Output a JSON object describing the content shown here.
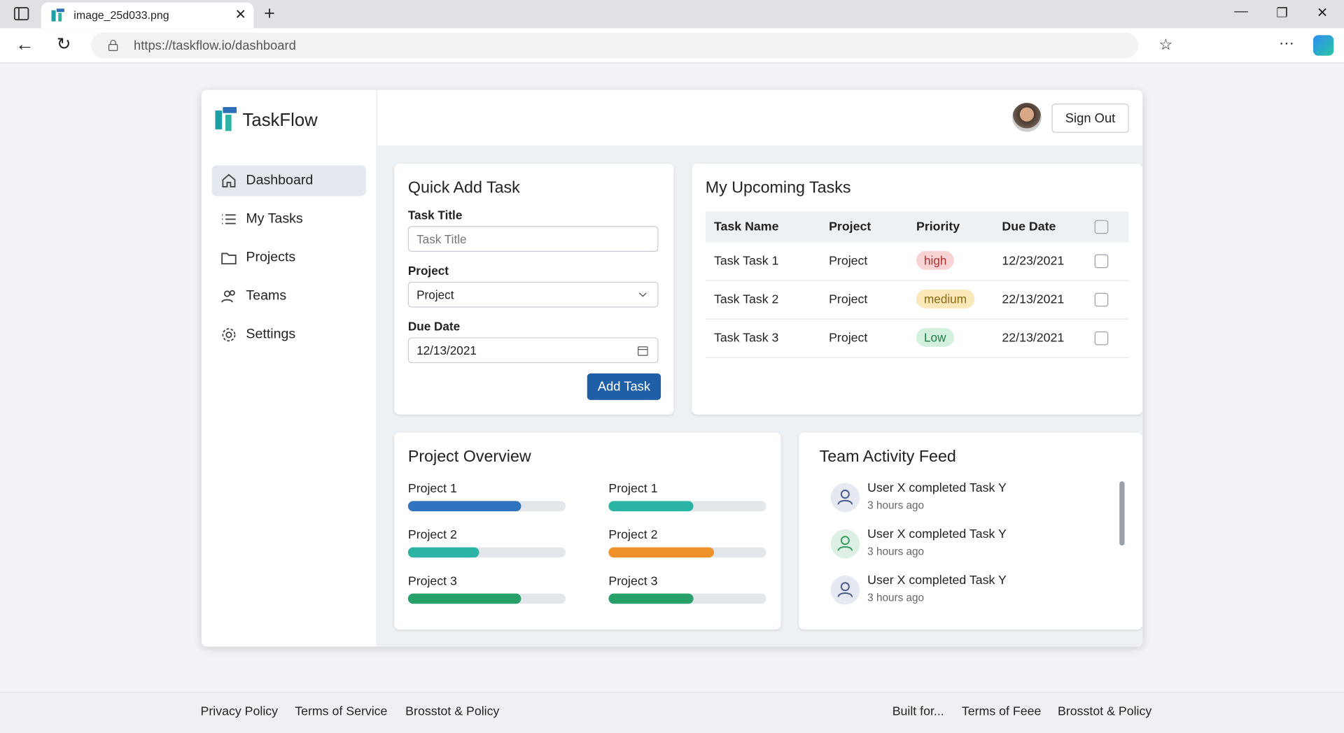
{
  "browser": {
    "tab_title": "image_25d033.png",
    "url": "https://taskflow.io/dashboard"
  },
  "app": {
    "brand": "TaskFlow",
    "nav": [
      "Dashboard",
      "My Tasks",
      "Projects",
      "Teams",
      "Settings"
    ],
    "sign_out": "Sign Out"
  },
  "quick_add": {
    "title": "Quick Add Task",
    "task_title_label": "Task Title",
    "task_title_placeholder": "Task Title",
    "project_label": "Project",
    "project_value": "Project",
    "due_label": "Due Date",
    "due_value": "12/13/2021",
    "button": "Add Task"
  },
  "upcoming": {
    "title": "My Upcoming Tasks",
    "columns": [
      "Task Name",
      "Project",
      "Priority",
      "Due Date"
    ],
    "rows": [
      [
        "Task Task 1",
        "Project",
        "high",
        "12/23/2021"
      ],
      [
        "Task Task 2",
        "Project",
        "medium",
        "22/13/2021"
      ],
      [
        "Task Task 3",
        "Project",
        "Low",
        "22/13/2021"
      ]
    ]
  },
  "overview": {
    "title": "Project Overview",
    "projects": [
      {
        "name": "Project 1",
        "progress": 72,
        "color": "#2f72bd"
      },
      {
        "name": "Project 1",
        "progress": 54,
        "color": "#2bb3a3"
      },
      {
        "name": "Project 2",
        "progress": 45,
        "color": "#2bb3a3"
      },
      {
        "name": "Project 2",
        "progress": 67,
        "color": "#f0922b"
      },
      {
        "name": "Project 3",
        "progress": 72,
        "color": "#27a06a"
      },
      {
        "name": "Project 3",
        "progress": 54,
        "color": "#27a06a"
      }
    ]
  },
  "activity": {
    "title": "Team Activity Feed",
    "items": [
      {
        "text": "User X completed Task Y",
        "time": "3 hours ago"
      },
      {
        "text": "User X completed Task Y",
        "time": "3 hours ago"
      },
      {
        "text": "User X completed Task Y",
        "time": "3 hours ago"
      }
    ]
  },
  "footer": {
    "left": [
      "Privacy Policy",
      "Terms of Service",
      "Brosstot & Policy"
    ],
    "right": [
      "Built for...",
      "Terms of Feee",
      "Brosstot & Policy"
    ]
  }
}
